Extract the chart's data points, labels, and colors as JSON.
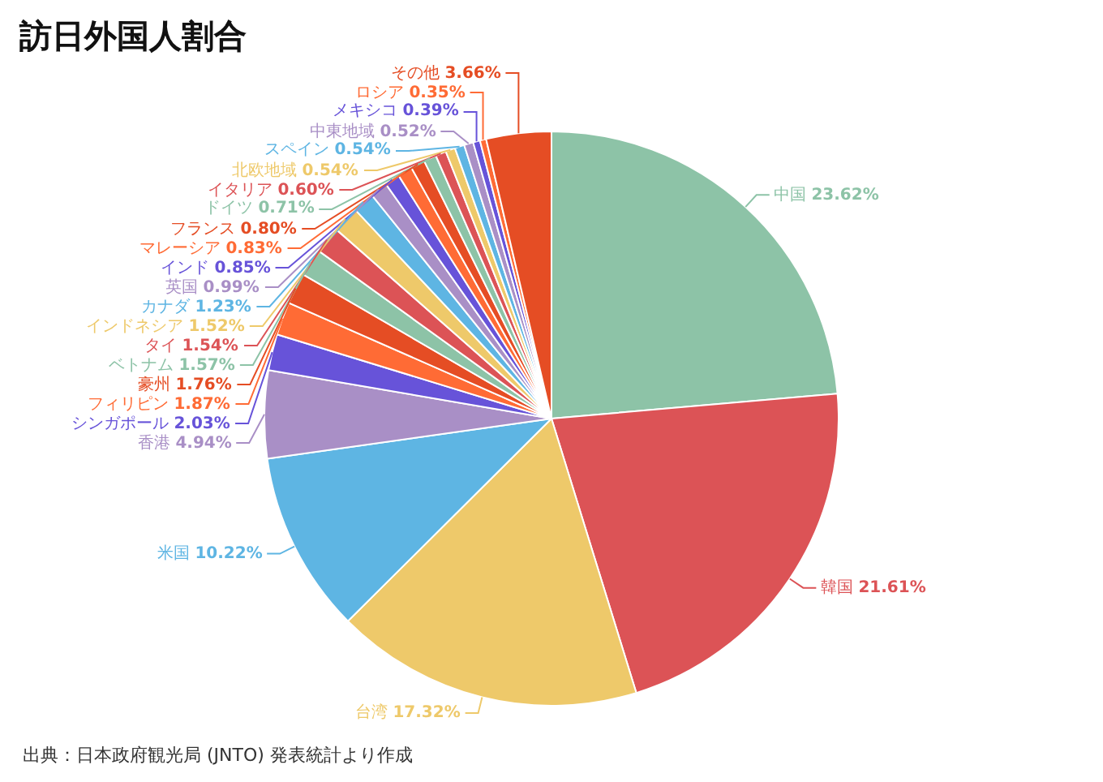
{
  "chart_data": {
    "type": "pie",
    "title": "訪日外国人割合",
    "categories": [
      "中国",
      "韓国",
      "台湾",
      "米国",
      "香港",
      "シンガポール",
      "フィリピン",
      "豪州",
      "ベトナム",
      "タイ",
      "インドネシア",
      "カナダ",
      "英国",
      "インド",
      "マレーシア",
      "フランス",
      "ドイツ",
      "イタリア",
      "北欧地域",
      "スペイン",
      "中東地域",
      "メキシコ",
      "ロシア",
      "その他"
    ],
    "values": [
      23.62,
      21.61,
      17.32,
      10.22,
      4.94,
      2.03,
      1.87,
      1.76,
      1.57,
      1.54,
      1.52,
      1.23,
      0.99,
      0.85,
      0.83,
      0.8,
      0.71,
      0.6,
      0.54,
      0.54,
      0.52,
      0.39,
      0.35,
      3.66
    ],
    "value_labels": [
      "23.62%",
      "21.61%",
      "17.32%",
      "10.22%",
      "4.94%",
      "2.03%",
      "1.87%",
      "1.76%",
      "1.57%",
      "1.54%",
      "1.52%",
      "1.23%",
      "0.99%",
      "0.85%",
      "0.83%",
      "0.80%",
      "0.71%",
      "0.60%",
      "0.54%",
      "0.54%",
      "0.52%",
      "0.39%",
      "0.35%",
      "3.66%"
    ],
    "colors": [
      "#8dc3a7",
      "#dc5356",
      "#eec96a",
      "#5eb5e3",
      "#a98fc6",
      "#6753d9",
      "#ff6b35",
      "#e54d24",
      "#8dc3a7",
      "#dc5356",
      "#eec96a",
      "#5eb5e3",
      "#a98fc6",
      "#6753d9",
      "#ff6b35",
      "#e54d24",
      "#8dc3a7",
      "#dc5356",
      "#eec96a",
      "#5eb5e3",
      "#a98fc6",
      "#6753d9",
      "#ff6b35",
      "#e54d24"
    ],
    "annotations": [
      "出典：日本政府観光局 (JNTO) 発表統計より作成"
    ]
  }
}
